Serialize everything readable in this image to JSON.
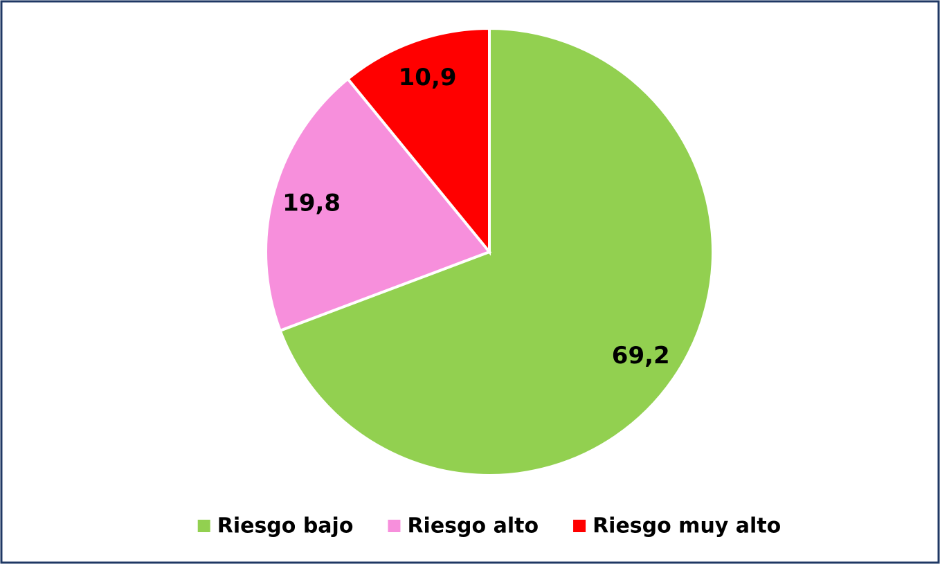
{
  "chart_data": {
    "type": "pie",
    "categories": [
      "Riesgo bajo",
      "Riesgo alto",
      "Riesgo muy alto"
    ],
    "values": [
      69.2,
      19.8,
      10.9
    ],
    "value_labels": [
      "69,2",
      "19,8",
      "10,9"
    ],
    "colors": [
      "#92d050",
      "#f78fdc",
      "#ff0000"
    ],
    "legend": "bottom"
  }
}
